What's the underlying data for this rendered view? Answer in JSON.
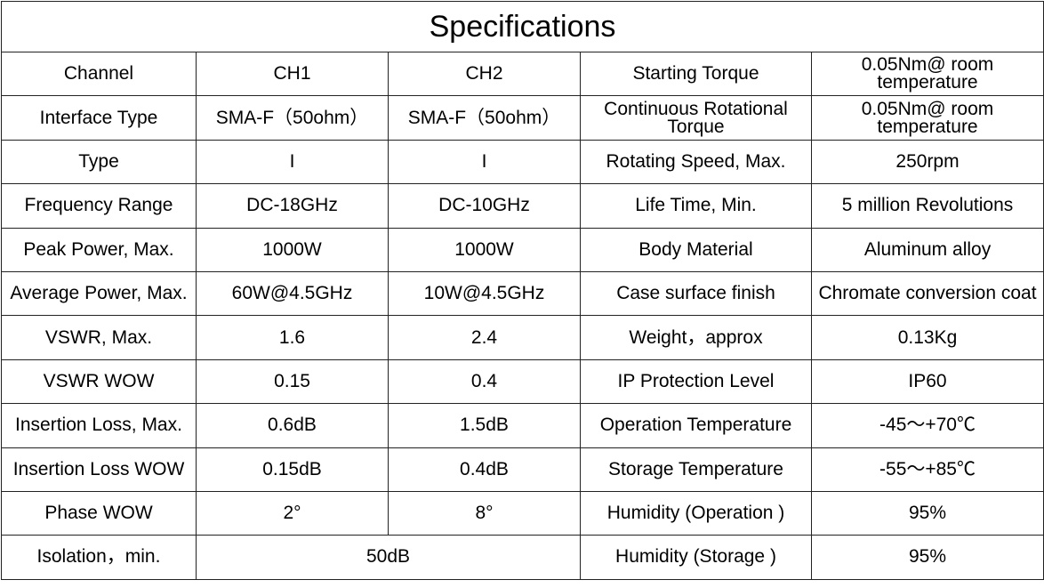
{
  "table": {
    "title": "Specifications",
    "rows": [
      [
        "Channel",
        "CH1",
        "CH2",
        "Starting Torque",
        "0.05Nm@ room temperature"
      ],
      [
        "Interface Type",
        "SMA-F（50ohm）",
        "SMA-F（50ohm）",
        "Continuous Rotational Torque",
        "0.05Nm@ room temperature"
      ],
      [
        "Type",
        "I",
        "I",
        "Rotating Speed, Max.",
        "250rpm"
      ],
      [
        "Frequency Range",
        "DC-18GHz",
        "DC-10GHz",
        "Life Time, Min.",
        "5 million Revolutions"
      ],
      [
        "Peak Power, Max.",
        "1000W",
        "1000W",
        "Body Material",
        "Aluminum alloy"
      ],
      [
        "Average Power, Max.",
        "60W@4.5GHz",
        "10W@4.5GHz",
        "Case surface finish",
        "Chromate conversion coat"
      ],
      [
        "VSWR, Max.",
        "1.6",
        "2.4",
        "Weight，approx",
        "0.13Kg"
      ],
      [
        "VSWR WOW",
        "0.15",
        "0.4",
        "IP Protection Level",
        "IP60"
      ],
      [
        "Insertion Loss, Max.",
        "0.6dB",
        "1.5dB",
        "Operation Temperature",
        "-45～+70℃"
      ],
      [
        "Insertion Loss WOW",
        "0.15dB",
        "0.4dB",
        "Storage Temperature",
        "-55～+85℃"
      ],
      [
        "Phase WOW",
        "2°",
        "8°",
        "Humidity (Operation )",
        "95%"
      ],
      [
        "Isolation，min.",
        "50dB",
        "Humidity (Storage )",
        "95%"
      ]
    ]
  }
}
